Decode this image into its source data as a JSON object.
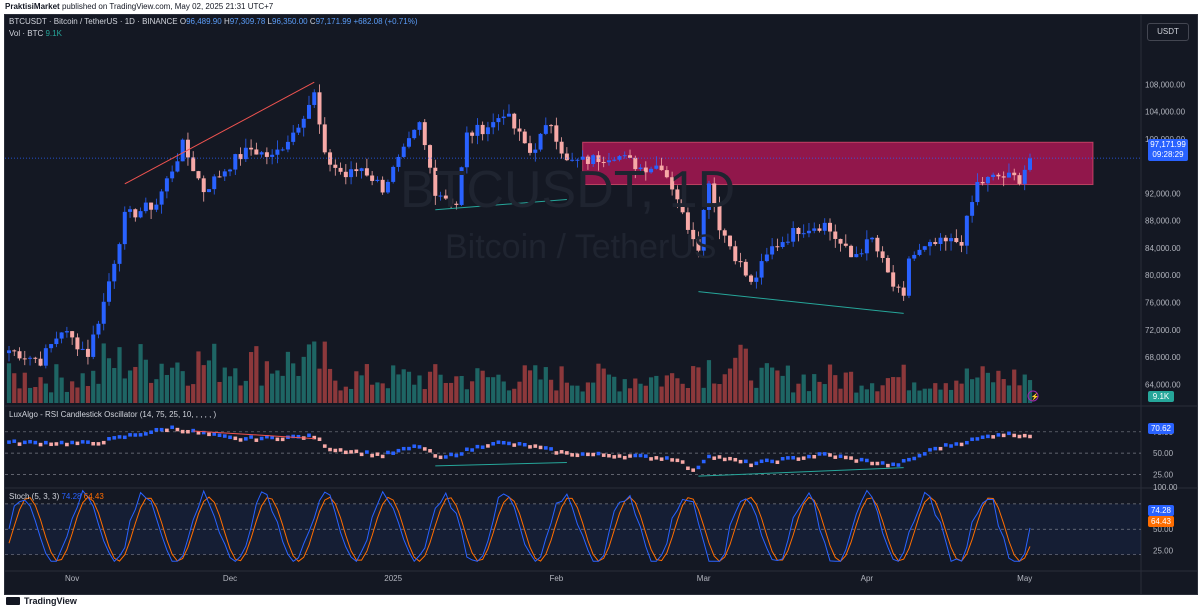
{
  "header": {
    "publisher": "PraktisiMarket",
    "published_text": "published on TradingView.com, May 02, 2025 21:31 UTC+7"
  },
  "footer": {
    "brand": "TradingView"
  },
  "symbol": {
    "name": "BTCUSDT · Bitcoin / TetherUS · 1D · BINANCE",
    "open_label": "O",
    "open": "96,489.90",
    "high_label": "H",
    "high": "97,309.78",
    "low_label": "L",
    "low": "96,350.00",
    "close_label": "C",
    "close": "97,171.99",
    "change": "+682.08 (+0.71%)",
    "watermark_ticker": "BTCUSDT, 1D",
    "watermark_name": "Bitcoin / TetherUS"
  },
  "volume_legend": {
    "label": "Vol · BTC",
    "value": "9.1K"
  },
  "currency_button": "USDT",
  "price_tag": {
    "value": "97,171.99",
    "countdown": "09:28:29",
    "color": "#2962ff"
  },
  "volume_tag": {
    "value": "9.1K",
    "color": "#26a69a"
  },
  "rsi": {
    "title": "LuxAlgo - RSI Candlestick Oscillator (14, 75, 25, 10, , , , , )",
    "value_tag": "70.62",
    "levels": [
      "75.00",
      "50.00",
      "25.00"
    ]
  },
  "stoch": {
    "title": "Stoch (5, 3, 3)",
    "k": "74.28",
    "d": "64.43",
    "k_color": "#2962ff",
    "d_color": "#ff6d00",
    "levels": [
      "100.00",
      "50.00",
      "25.00"
    ]
  },
  "colors": {
    "up": "#2962ff",
    "down": "#f7a9a7",
    "vol_up": "#26a69a",
    "vol_down": "#ef5350",
    "zone": "#c2185b",
    "trend_red": "#ef5350",
    "trend_green": "#26a69a",
    "background": "#141823"
  },
  "chart_data": [
    {
      "type": "candlestick",
      "title": "BTCUSDT · Bitcoin / TetherUS · 1D · BINANCE",
      "x_ticks": [
        "Nov",
        "Dec",
        "2025",
        "Feb",
        "Mar",
        "Apr",
        "May"
      ],
      "y_ticks": [
        "108,000.00",
        "104,000.00",
        "100,000.00",
        "92,000.00",
        "88,000.00",
        "84,000.00",
        "80,000.00",
        "76,000.00",
        "72,000.00",
        "68,000.00",
        "64,000.00"
      ],
      "ylim": [
        62000,
        112000
      ],
      "close_path": [
        [
          "2024-10-20",
          69000
        ],
        [
          "2024-10-26",
          67500
        ],
        [
          "2024-10-30",
          72000
        ],
        [
          "2024-11-04",
          68500
        ],
        [
          "2024-11-07",
          76000
        ],
        [
          "2024-11-11",
          88500
        ],
        [
          "2024-11-17",
          90500
        ],
        [
          "2024-11-22",
          99000
        ],
        [
          "2024-11-26",
          92500
        ],
        [
          "2024-12-02",
          97000
        ],
        [
          "2024-12-05",
          98500
        ],
        [
          "2024-12-09",
          97200
        ],
        [
          "2024-12-13",
          101000
        ],
        [
          "2024-12-17",
          106500
        ],
        [
          "2024-12-19",
          97200
        ],
        [
          "2024-12-23",
          94500
        ],
        [
          "2024-12-26",
          95800
        ],
        [
          "2024-12-30",
          92800
        ],
        [
          "2025-01-03",
          98000
        ],
        [
          "2025-01-06",
          102000
        ],
        [
          "2025-01-09",
          92500
        ],
        [
          "2025-01-13",
          90500
        ],
        [
          "2025-01-15",
          100500
        ],
        [
          "2025-01-20",
          102300
        ],
        [
          "2025-01-22",
          104000
        ],
        [
          "2025-01-27",
          98000
        ],
        [
          "2025-01-31",
          102400
        ],
        [
          "2025-02-03",
          96500
        ],
        [
          "2025-02-07",
          96800
        ],
        [
          "2025-02-12",
          97800
        ],
        [
          "2025-02-17",
          95800
        ],
        [
          "2025-02-21",
          96200
        ],
        [
          "2025-02-24",
          91500
        ],
        [
          "2025-02-25",
          88700
        ],
        [
          "2025-02-28",
          84500
        ],
        [
          "2025-03-02",
          94200
        ],
        [
          "2025-03-04",
          87300
        ],
        [
          "2025-03-10",
          78600
        ],
        [
          "2025-03-14",
          84000
        ],
        [
          "2025-03-19",
          86800
        ],
        [
          "2025-03-24",
          87500
        ],
        [
          "2025-03-29",
          82600
        ],
        [
          "2025-04-02",
          85200
        ],
        [
          "2025-04-06",
          78400
        ],
        [
          "2025-04-08",
          76300
        ],
        [
          "2025-04-09",
          82600
        ],
        [
          "2025-04-14",
          84500
        ],
        [
          "2025-04-19",
          85100
        ],
        [
          "2025-04-22",
          93400
        ],
        [
          "2025-04-26",
          94500
        ],
        [
          "2025-04-30",
          94200
        ],
        [
          "2025-05-02",
          97171.99
        ]
      ],
      "annotations": [
        {
          "type": "zone",
          "from": "2025-02-06",
          "to": "2025-05-04",
          "y_range": [
            93300,
            99500
          ],
          "color": "#c2185b"
        },
        {
          "type": "trendline",
          "color": "#ef5350",
          "points": [
            [
              "2024-11-11",
              93400
            ],
            [
              "2024-12-17",
              108300
            ]
          ]
        },
        {
          "type": "trendline",
          "color": "#26a69a",
          "points": [
            [
              "2025-01-09",
              89600
            ],
            [
              "2025-02-03",
              91100
            ]
          ]
        },
        {
          "type": "trendline",
          "color": "#26a69a",
          "points": [
            [
              "2025-02-28",
              77600
            ],
            [
              "2025-04-08",
              74400
            ]
          ]
        }
      ]
    },
    {
      "type": "bar",
      "title": "Vol · BTC",
      "series": [
        {
          "name": "Vol · BTC",
          "last": "9.1K"
        }
      ]
    },
    {
      "type": "line",
      "title": "LuxAlgo - RSI Candlestick Oscillator (14, 75, 25, 10, , , , , )",
      "levels": [
        75,
        50,
        25
      ],
      "ylim": [
        15,
        90
      ],
      "last": 70.62,
      "path": [
        [
          "2024-10-20",
          62
        ],
        [
          "2024-11-05",
          61
        ],
        [
          "2024-11-12",
          70
        ],
        [
          "2024-11-20",
          79
        ],
        [
          "2024-12-02",
          66
        ],
        [
          "2024-12-17",
          69
        ],
        [
          "2024-12-20",
          55
        ],
        [
          "2024-12-30",
          47
        ],
        [
          "2025-01-06",
          58
        ],
        [
          "2025-01-10",
          43
        ],
        [
          "2025-01-20",
          62
        ],
        [
          "2025-01-27",
          58
        ],
        [
          "2025-02-03",
          49
        ],
        [
          "2025-02-12",
          47
        ],
        [
          "2025-02-24",
          43
        ],
        [
          "2025-02-27",
          28
        ],
        [
          "2025-03-02",
          47
        ],
        [
          "2025-03-10",
          37
        ],
        [
          "2025-03-24",
          48
        ],
        [
          "2025-04-06",
          35
        ],
        [
          "2025-04-09",
          41
        ],
        [
          "2025-04-14",
          55
        ],
        [
          "2025-04-22",
          66
        ],
        [
          "2025-04-26",
          72
        ],
        [
          "2025-05-02",
          70.62
        ]
      ],
      "divergences": [
        {
          "color": "#26a69a",
          "points": [
            [
              "2025-01-09",
              35
            ],
            [
              "2025-02-03",
              39
            ]
          ]
        },
        {
          "color": "#26a69a",
          "points": [
            [
              "2025-02-28",
              23
            ],
            [
              "2025-04-08",
              33
            ]
          ]
        },
        {
          "color": "#ef5350",
          "points": [
            [
              "2024-11-24",
              76
            ],
            [
              "2024-12-17",
              67
            ]
          ]
        }
      ]
    },
    {
      "type": "line",
      "title": "Stoch (5, 3, 3)",
      "levels": [
        100,
        50,
        25
      ],
      "ylim": [
        10,
        100
      ],
      "series": [
        {
          "name": "%K",
          "last": 74.28
        },
        {
          "name": "%D",
          "last": 64.43
        }
      ]
    }
  ]
}
